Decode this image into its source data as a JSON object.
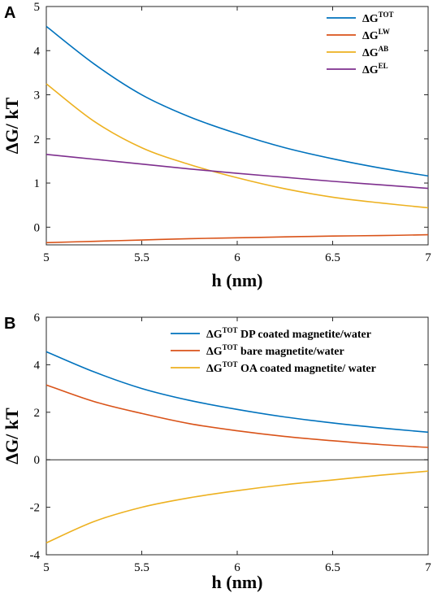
{
  "chart_data": [
    {
      "panel_label": "A",
      "type": "line",
      "xlabel": "h (nm)",
      "ylabel": "ΔG/ kT",
      "xlim": [
        5,
        7
      ],
      "ylim": [
        -0.4,
        5
      ],
      "xticks": [
        "5",
        "5.5",
        "6",
        "6.5",
        "7"
      ],
      "yticks": [
        "0",
        "1",
        "2",
        "3",
        "4",
        "5"
      ],
      "legend_position": "top-right",
      "series": [
        {
          "name": "ΔG",
          "sup": "TOT",
          "color": "#0072BD",
          "x": [
            5,
            5.25,
            5.5,
            5.75,
            6,
            6.25,
            6.5,
            6.75,
            7
          ],
          "y": [
            4.55,
            3.7,
            3.0,
            2.5,
            2.12,
            1.8,
            1.55,
            1.34,
            1.16
          ]
        },
        {
          "name": "ΔG",
          "sup": "LW",
          "color": "#D95319",
          "x": [
            5,
            5.25,
            5.5,
            5.75,
            6,
            6.25,
            6.5,
            6.75,
            7
          ],
          "y": [
            -0.35,
            -0.32,
            -0.29,
            -0.26,
            -0.24,
            -0.22,
            -0.2,
            -0.19,
            -0.17
          ]
        },
        {
          "name": "ΔG",
          "sup": "AB",
          "color": "#EDB120",
          "x": [
            5,
            5.25,
            5.5,
            5.75,
            6,
            6.25,
            6.5,
            6.75,
            7
          ],
          "y": [
            3.25,
            2.4,
            1.8,
            1.42,
            1.12,
            0.87,
            0.68,
            0.55,
            0.44
          ]
        },
        {
          "name": "ΔG",
          "sup": "EL",
          "color": "#7E2F8E",
          "x": [
            5,
            5.25,
            5.5,
            5.75,
            6,
            6.25,
            6.5,
            6.75,
            7
          ],
          "y": [
            1.65,
            1.54,
            1.43,
            1.32,
            1.22,
            1.13,
            1.04,
            0.96,
            0.88
          ]
        }
      ]
    },
    {
      "panel_label": "B",
      "type": "line",
      "xlabel": "h (nm)",
      "ylabel": "ΔG/ kT",
      "xlim": [
        5,
        7
      ],
      "ylim": [
        -4,
        6
      ],
      "xticks": [
        "5",
        "5.5",
        "6",
        "6.5",
        "7"
      ],
      "yticks": [
        "-4",
        "-2",
        "0",
        "2",
        "4",
        "6"
      ],
      "zero_line": true,
      "legend_position": "top-right",
      "series": [
        {
          "name": "ΔG",
          "sup": "TOT",
          "rest": " DP coated magnetite/water",
          "color": "#0072BD",
          "x": [
            5,
            5.25,
            5.5,
            5.75,
            6,
            6.25,
            6.5,
            6.75,
            7
          ],
          "y": [
            4.55,
            3.7,
            3.0,
            2.5,
            2.12,
            1.8,
            1.55,
            1.34,
            1.16
          ]
        },
        {
          "name": "ΔG",
          "sup": "TOT",
          "rest": " bare magnetite/water",
          "color": "#D95319",
          "x": [
            5,
            5.25,
            5.5,
            5.75,
            6,
            6.25,
            6.5,
            6.75,
            7
          ],
          "y": [
            3.15,
            2.45,
            1.95,
            1.52,
            1.22,
            0.98,
            0.8,
            0.64,
            0.52
          ]
        },
        {
          "name": "ΔG",
          "sup": "TOT",
          "rest": " OA coated magnetite/ water",
          "color": "#EDB120",
          "x": [
            5,
            5.25,
            5.5,
            5.75,
            6,
            6.25,
            6.5,
            6.75,
            7
          ],
          "y": [
            -3.5,
            -2.6,
            -2.0,
            -1.6,
            -1.3,
            -1.05,
            -0.85,
            -0.65,
            -0.48
          ]
        }
      ]
    }
  ]
}
